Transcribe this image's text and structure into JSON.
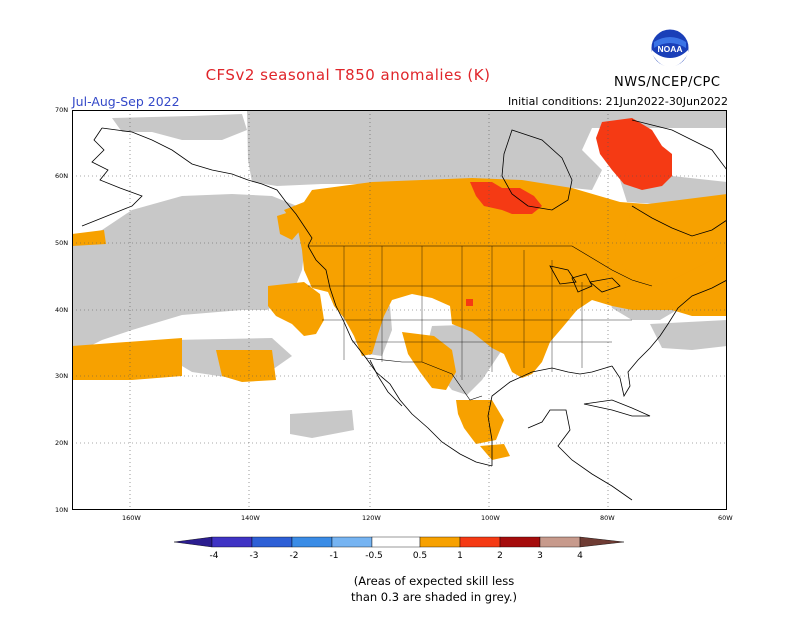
{
  "header": {
    "title": "CFSv2 seasonal T850 anomalies (K)",
    "period": "Jul-Aug-Sep 2022",
    "initial_conditions": "Initial conditions: 21Jun2022-30Jun2022",
    "agency": "NWS/NCEP/CPC",
    "logo_text": "NOAA"
  },
  "axes": {
    "lat_labels": [
      "70N",
      "60N",
      "50N",
      "40N",
      "30N",
      "20N",
      "10N"
    ],
    "lon_labels": [
      "160W",
      "140W",
      "120W",
      "100W",
      "80W",
      "60W"
    ]
  },
  "colorbar": {
    "labels": [
      "-4",
      "-3",
      "-2",
      "-1",
      "-0.5",
      "0.5",
      "1",
      "2",
      "3",
      "4"
    ],
    "colors": {
      "lt_-4": "#2b1d8f",
      "-4_-3": "#3f33c4",
      "-3_-2": "#2d5fd6",
      "-2_-1": "#3a8ce6",
      "-1_-0.5": "#76b4f2",
      "-0.5_0.5": "#ffffff",
      "0.5_1": "#f7a100",
      "1_2": "#f53a14",
      "2_3": "#a50c0c",
      "3_4": "#c79a8c",
      "gt_4": "#6e3b33"
    }
  },
  "map_colors": {
    "low_skill_grey": "#c8c8c8",
    "warm_0.5_1": "#f7a100",
    "warm_1_2": "#f53a14"
  },
  "footnote": {
    "line1": "(Areas of expected skill less",
    "line2": "than 0.3 are shaded in grey.)"
  }
}
